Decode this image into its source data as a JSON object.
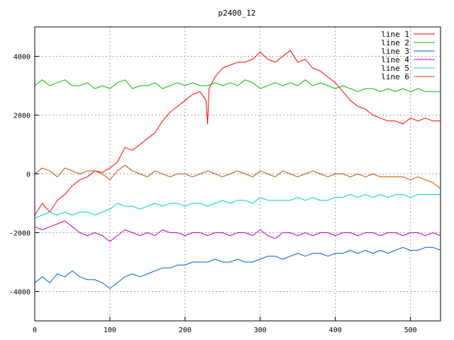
{
  "chart_data": {
    "type": "line",
    "title": "p2400_12",
    "xlabel": "",
    "ylabel": "",
    "xlim": [
      0,
      540
    ],
    "ylim": [
      -5000,
      5000
    ],
    "x_ticks": [
      0,
      100,
      200,
      300,
      400,
      500
    ],
    "x_tick_labels": [
      "0",
      "100",
      "200",
      "300",
      "400",
      "500"
    ],
    "y_ticks": [
      -4000,
      -2000,
      0,
      2000,
      4000
    ],
    "y_tick_labels": [
      "-4000",
      "-2000",
      "0",
      "2000",
      "4000"
    ],
    "grid": true,
    "legend_position": "top-right",
    "series": [
      {
        "name": "line 1",
        "color": "#ff0000",
        "x": [
          0,
          10,
          20,
          30,
          40,
          50,
          60,
          70,
          80,
          90,
          100,
          110,
          120,
          130,
          140,
          150,
          160,
          170,
          180,
          190,
          200,
          210,
          220,
          228,
          230,
          232,
          240,
          250,
          260,
          270,
          280,
          290,
          300,
          310,
          320,
          330,
          340,
          350,
          360,
          370,
          380,
          390,
          400,
          410,
          420,
          430,
          440,
          450,
          460,
          470,
          480,
          490,
          500,
          510,
          520,
          530,
          540
        ],
        "y": [
          -1400,
          -1000,
          -1300,
          -900,
          -700,
          -400,
          -200,
          -100,
          100,
          50,
          200,
          400,
          900,
          800,
          1000,
          1200,
          1400,
          1800,
          2100,
          2300,
          2500,
          2700,
          2800,
          2500,
          1700,
          2900,
          3300,
          3600,
          3700,
          3800,
          3800,
          3900,
          4150,
          3900,
          3800,
          4000,
          4200,
          3800,
          3900,
          3600,
          3500,
          3300,
          3100,
          2800,
          2500,
          2300,
          2200,
          2000,
          1900,
          1800,
          1800,
          1700,
          1900,
          1800,
          1900,
          1800,
          1800
        ]
      },
      {
        "name": "line 2",
        "color": "#00c000",
        "x": [
          0,
          10,
          20,
          30,
          40,
          50,
          60,
          70,
          80,
          90,
          100,
          110,
          120,
          130,
          140,
          150,
          160,
          170,
          180,
          190,
          200,
          210,
          220,
          230,
          240,
          250,
          260,
          270,
          280,
          290,
          300,
          310,
          320,
          330,
          340,
          350,
          360,
          370,
          380,
          390,
          400,
          410,
          420,
          430,
          440,
          450,
          460,
          470,
          480,
          490,
          500,
          510,
          520,
          530,
          540
        ],
        "y": [
          3000,
          3200,
          3000,
          3100,
          3200,
          3000,
          3000,
          3100,
          2900,
          3000,
          2900,
          3100,
          3200,
          2900,
          3000,
          3000,
          3100,
          2900,
          3000,
          3100,
          3000,
          3100,
          3000,
          3000,
          3100,
          3000,
          3100,
          3000,
          3200,
          3100,
          2900,
          3000,
          3100,
          3000,
          3100,
          3000,
          3200,
          3000,
          3100,
          3000,
          2900,
          3000,
          2900,
          2800,
          2900,
          2900,
          2800,
          2900,
          2800,
          2900,
          2800,
          2900,
          2800,
          2800,
          2800
        ]
      },
      {
        "name": "line 3",
        "color": "#0060d0",
        "x": [
          0,
          10,
          20,
          30,
          40,
          50,
          60,
          70,
          80,
          90,
          100,
          110,
          120,
          130,
          140,
          150,
          160,
          170,
          180,
          190,
          200,
          210,
          220,
          230,
          240,
          250,
          260,
          270,
          280,
          290,
          300,
          310,
          320,
          330,
          340,
          350,
          360,
          370,
          380,
          390,
          400,
          410,
          420,
          430,
          440,
          450,
          460,
          470,
          480,
          490,
          500,
          510,
          520,
          530,
          540
        ],
        "y": [
          -3700,
          -3500,
          -3700,
          -3400,
          -3500,
          -3300,
          -3500,
          -3600,
          -3600,
          -3700,
          -3900,
          -3700,
          -3500,
          -3400,
          -3500,
          -3400,
          -3300,
          -3200,
          -3200,
          -3100,
          -3100,
          -3000,
          -3000,
          -3000,
          -2900,
          -3000,
          -3000,
          -2900,
          -3000,
          -3000,
          -2900,
          -2800,
          -2800,
          -2900,
          -2800,
          -2700,
          -2800,
          -2700,
          -2700,
          -2800,
          -2700,
          -2700,
          -2600,
          -2700,
          -2600,
          -2700,
          -2600,
          -2700,
          -2600,
          -2500,
          -2600,
          -2600,
          -2500,
          -2500,
          -2600
        ]
      },
      {
        "name": "line 4",
        "color": "#c000c0",
        "x": [
          0,
          10,
          20,
          30,
          40,
          50,
          60,
          70,
          80,
          90,
          100,
          110,
          120,
          130,
          140,
          150,
          160,
          170,
          180,
          190,
          200,
          210,
          220,
          230,
          240,
          250,
          260,
          270,
          280,
          290,
          300,
          310,
          320,
          330,
          340,
          350,
          360,
          370,
          380,
          390,
          400,
          410,
          420,
          430,
          440,
          450,
          460,
          470,
          480,
          490,
          500,
          510,
          520,
          530,
          540
        ],
        "y": [
          -1800,
          -1900,
          -1800,
          -1700,
          -1600,
          -1800,
          -2000,
          -2100,
          -2000,
          -2100,
          -2300,
          -2100,
          -1900,
          -2000,
          -2100,
          -2000,
          -2100,
          -1900,
          -2000,
          -2000,
          -2100,
          -2000,
          -2000,
          -2100,
          -2000,
          -2000,
          -2100,
          -2000,
          -2000,
          -2100,
          -1900,
          -2100,
          -2200,
          -2000,
          -2000,
          -2100,
          -2000,
          -2100,
          -2000,
          -2000,
          -2100,
          -2000,
          -2000,
          -2100,
          -2000,
          -2000,
          -2100,
          -2000,
          -2000,
          -2100,
          -2000,
          -2000,
          -2100,
          -2000,
          -2100
        ]
      },
      {
        "name": "line 5",
        "color": "#00d0d0",
        "x": [
          0,
          10,
          20,
          30,
          40,
          50,
          60,
          70,
          80,
          90,
          100,
          110,
          120,
          130,
          140,
          150,
          160,
          170,
          180,
          190,
          200,
          210,
          220,
          230,
          240,
          250,
          260,
          270,
          280,
          290,
          300,
          310,
          320,
          330,
          340,
          350,
          360,
          370,
          380,
          390,
          400,
          410,
          420,
          430,
          440,
          450,
          460,
          470,
          480,
          490,
          500,
          510,
          520,
          530,
          540
        ],
        "y": [
          -1500,
          -1400,
          -1300,
          -1400,
          -1300,
          -1400,
          -1300,
          -1300,
          -1400,
          -1300,
          -1200,
          -1000,
          -1100,
          -1100,
          -1200,
          -1100,
          -1000,
          -1100,
          -1000,
          -1000,
          -1100,
          -1000,
          -1000,
          -1100,
          -1000,
          -900,
          -1000,
          -900,
          -900,
          -1000,
          -800,
          -900,
          -900,
          -900,
          -900,
          -800,
          -900,
          -800,
          -900,
          -900,
          -800,
          -800,
          -700,
          -800,
          -700,
          -800,
          -700,
          -800,
          -700,
          -700,
          -800,
          -700,
          -700,
          -700,
          -700
        ]
      },
      {
        "name": "line 6",
        "color": "#c05000",
        "x": [
          0,
          10,
          20,
          30,
          40,
          50,
          60,
          70,
          80,
          90,
          100,
          110,
          120,
          130,
          140,
          150,
          160,
          170,
          180,
          190,
          200,
          210,
          220,
          230,
          240,
          250,
          260,
          270,
          280,
          290,
          300,
          310,
          320,
          330,
          340,
          350,
          360,
          370,
          380,
          390,
          400,
          410,
          420,
          430,
          440,
          450,
          460,
          470,
          480,
          490,
          500,
          510,
          520,
          530,
          540
        ],
        "y": [
          0,
          200,
          100,
          -100,
          200,
          100,
          0,
          100,
          100,
          0,
          -200,
          100,
          300,
          100,
          0,
          -100,
          100,
          0,
          -100,
          0,
          0,
          -100,
          0,
          100,
          0,
          -100,
          0,
          100,
          0,
          -100,
          100,
          0,
          -100,
          100,
          0,
          -100,
          0,
          100,
          0,
          -100,
          0,
          0,
          -100,
          0,
          -100,
          0,
          -100,
          -100,
          -100,
          -100,
          -200,
          -100,
          -200,
          -300,
          -500
        ]
      }
    ]
  }
}
